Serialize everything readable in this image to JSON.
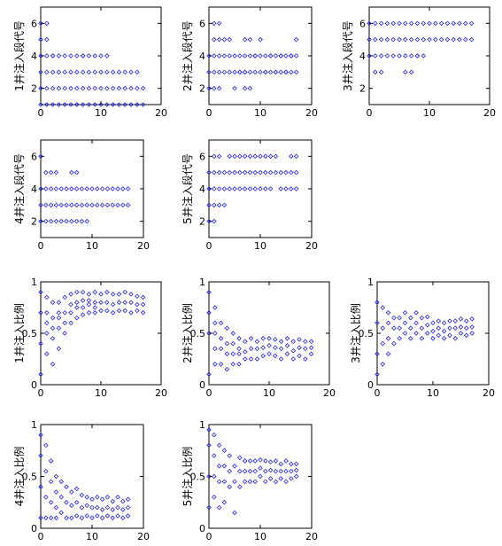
{
  "colors": {
    "marker": "#2222ee",
    "axis": "#000000",
    "background": "#ffffff"
  },
  "chart_data": [
    {
      "id": "p1",
      "type": "scatter",
      "ylabel": "1井注入段代号",
      "xlim": [
        0,
        20
      ],
      "ylim": [
        1,
        7
      ],
      "xticks": [
        0,
        10,
        20
      ],
      "yticks": [
        2,
        4,
        6
      ],
      "x": [
        0,
        0,
        0,
        0,
        0,
        0,
        1,
        1,
        1,
        1,
        1,
        1,
        2,
        2,
        2,
        2,
        2,
        3,
        3,
        3,
        3,
        4,
        4,
        4,
        4,
        5,
        5,
        5,
        5,
        6,
        6,
        6,
        6,
        7,
        7,
        7,
        7,
        7,
        8,
        8,
        8,
        8,
        9,
        9,
        9,
        9,
        10,
        10,
        10,
        10,
        11,
        11,
        11,
        11,
        12,
        12,
        12,
        13,
        13,
        13,
        14,
        14,
        14,
        15,
        15,
        15,
        16,
        16,
        16,
        17,
        17
      ],
      "y": [
        1,
        2,
        3,
        4,
        5,
        6,
        1,
        2,
        3,
        4,
        5,
        6,
        1,
        2,
        3,
        4,
        4,
        1,
        2,
        3,
        4,
        1,
        2,
        3,
        4,
        1,
        2,
        3,
        4,
        1,
        2,
        3,
        4,
        1,
        2,
        3,
        4,
        4,
        1,
        2,
        3,
        4,
        1,
        2,
        3,
        4,
        1,
        2,
        3,
        4,
        1,
        2,
        3,
        4,
        1,
        2,
        3,
        1,
        2,
        3,
        1,
        2,
        3,
        1,
        2,
        3,
        1,
        2,
        3,
        1,
        2
      ]
    },
    {
      "id": "p2",
      "type": "scatter",
      "ylabel": "2井注入段代号",
      "xlim": [
        0,
        20
      ],
      "ylim": [
        1,
        7
      ],
      "xticks": [
        0,
        10,
        20
      ],
      "yticks": [
        2,
        4,
        6
      ],
      "x": [
        0,
        0,
        0,
        1,
        1,
        1,
        1,
        1,
        2,
        2,
        2,
        2,
        2,
        3,
        3,
        3,
        4,
        4,
        4,
        5,
        5,
        5,
        6,
        6,
        6,
        7,
        7,
        7,
        7,
        7,
        8,
        8,
        8,
        8,
        9,
        9,
        9,
        10,
        10,
        10,
        11,
        11,
        11,
        12,
        12,
        12,
        13,
        13,
        13,
        14,
        14,
        14,
        15,
        15,
        15,
        16,
        16,
        16,
        17,
        17,
        17
      ],
      "y": [
        2,
        3,
        4,
        2,
        3,
        4,
        5,
        6,
        2,
        3,
        4,
        5,
        6,
        3,
        4,
        5,
        3,
        4,
        5,
        3,
        4,
        2,
        3,
        4,
        3,
        2,
        3,
        4,
        5,
        3,
        4,
        5,
        2,
        3,
        4,
        3,
        4,
        3,
        4,
        5,
        3,
        4,
        3,
        4,
        3,
        4,
        3,
        4,
        3,
        4,
        3,
        4,
        3,
        4,
        3,
        4,
        3,
        4,
        3,
        4,
        5
      ]
    },
    {
      "id": "p3",
      "type": "scatter",
      "ylabel": "3井注入段代号",
      "xlim": [
        0,
        20
      ],
      "ylim": [
        1,
        7
      ],
      "xticks": [
        0,
        10,
        20
      ],
      "yticks": [
        2,
        4,
        6
      ],
      "x": [
        0,
        0,
        0,
        1,
        1,
        1,
        1,
        2,
        2,
        2,
        2,
        3,
        3,
        3,
        4,
        4,
        4,
        5,
        5,
        5,
        6,
        6,
        6,
        6,
        7,
        7,
        7,
        7,
        8,
        8,
        8,
        8,
        9,
        9,
        9,
        10,
        10,
        11,
        11,
        12,
        12,
        13,
        13,
        14,
        14,
        15,
        15,
        16,
        16,
        17,
        17
      ],
      "y": [
        4,
        5,
        6,
        3,
        4,
        5,
        6,
        3,
        4,
        5,
        6,
        4,
        5,
        6,
        4,
        5,
        6,
        4,
        5,
        6,
        3,
        4,
        5,
        6,
        3,
        4,
        5,
        6,
        4,
        5,
        6,
        4,
        5,
        6,
        4,
        5,
        6,
        5,
        6,
        5,
        6,
        5,
        6,
        5,
        6,
        5,
        6,
        5,
        6,
        5,
        6
      ]
    },
    {
      "id": "p4",
      "type": "scatter",
      "ylabel": "4井注入段代号",
      "xlim": [
        0,
        20
      ],
      "ylim": [
        1,
        7
      ],
      "xticks": [
        0,
        10,
        20
      ],
      "yticks": [
        2,
        4,
        6
      ],
      "x": [
        0,
        0,
        0,
        0,
        1,
        1,
        1,
        1,
        2,
        2,
        2,
        2,
        3,
        3,
        3,
        3,
        4,
        4,
        4,
        5,
        5,
        5,
        6,
        6,
        6,
        6,
        7,
        7,
        7,
        7,
        8,
        8,
        8,
        9,
        9,
        9,
        10,
        10,
        11,
        11,
        12,
        12,
        13,
        13,
        14,
        14,
        15,
        15,
        16,
        16,
        17,
        17
      ],
      "y": [
        2,
        3,
        4,
        6,
        2,
        3,
        4,
        5,
        2,
        3,
        4,
        5,
        2,
        3,
        4,
        5,
        2,
        3,
        4,
        2,
        3,
        4,
        2,
        3,
        4,
        5,
        2,
        3,
        4,
        5,
        2,
        3,
        4,
        2,
        3,
        4,
        3,
        4,
        3,
        4,
        3,
        4,
        3,
        4,
        3,
        4,
        3,
        4,
        3,
        4,
        3,
        4
      ]
    },
    {
      "id": "p5",
      "type": "scatter",
      "ylabel": "5井注入段代号",
      "xlim": [
        0,
        20
      ],
      "ylim": [
        1,
        7
      ],
      "xticks": [
        0,
        10,
        20
      ],
      "yticks": [
        2,
        4,
        6
      ],
      "x": [
        0,
        0,
        0,
        0,
        1,
        1,
        1,
        1,
        1,
        2,
        2,
        2,
        2,
        3,
        3,
        3,
        4,
        4,
        4,
        5,
        5,
        5,
        6,
        6,
        6,
        7,
        7,
        7,
        8,
        8,
        8,
        9,
        9,
        9,
        10,
        10,
        10,
        11,
        11,
        11,
        12,
        12,
        12,
        13,
        13,
        14,
        14,
        15,
        15,
        16,
        16,
        16,
        17,
        17,
        17
      ],
      "y": [
        2,
        3,
        4,
        5,
        2,
        3,
        4,
        5,
        6,
        3,
        4,
        5,
        6,
        3,
        4,
        5,
        4,
        5,
        6,
        4,
        5,
        6,
        4,
        5,
        6,
        4,
        5,
        6,
        4,
        5,
        6,
        4,
        5,
        6,
        4,
        5,
        6,
        4,
        5,
        6,
        4,
        5,
        6,
        5,
        6,
        4,
        5,
        4,
        5,
        4,
        5,
        6,
        4,
        5,
        6
      ]
    },
    {
      "id": "r1",
      "type": "scatter",
      "ylabel": "1井注入比例",
      "xlim": [
        0,
        20
      ],
      "ylim": [
        0,
        1
      ],
      "xticks": [
        0,
        10,
        20
      ],
      "yticks": [
        0,
        0.5,
        1
      ],
      "ytick_labels": [
        "0",
        "0.5",
        "1"
      ],
      "x": [
        0,
        0,
        0,
        0,
        1,
        1,
        1,
        1,
        1,
        2,
        2,
        2,
        2,
        2,
        3,
        3,
        3,
        3,
        3,
        4,
        4,
        4,
        4,
        5,
        5,
        5,
        5,
        6,
        6,
        6,
        6,
        7,
        7,
        7,
        7,
        8,
        8,
        8,
        8,
        9,
        9,
        9,
        9,
        10,
        10,
        10,
        11,
        11,
        11,
        12,
        12,
        12,
        13,
        13,
        13,
        14,
        14,
        14,
        15,
        15,
        15,
        16,
        16,
        16,
        17,
        17,
        17
      ],
      "y": [
        0.1,
        0.4,
        0.7,
        0.9,
        0.3,
        0.5,
        0.6,
        0.7,
        0.85,
        0.2,
        0.45,
        0.55,
        0.65,
        0.8,
        0.35,
        0.55,
        0.65,
        0.7,
        0.8,
        0.5,
        0.6,
        0.7,
        0.85,
        0.6,
        0.7,
        0.78,
        0.88,
        0.65,
        0.75,
        0.8,
        0.9,
        0.68,
        0.75,
        0.82,
        0.9,
        0.7,
        0.78,
        0.82,
        0.88,
        0.7,
        0.75,
        0.8,
        0.9,
        0.72,
        0.8,
        0.88,
        0.72,
        0.8,
        0.9,
        0.7,
        0.78,
        0.88,
        0.72,
        0.8,
        0.88,
        0.72,
        0.8,
        0.9,
        0.7,
        0.8,
        0.88,
        0.72,
        0.78,
        0.86,
        0.7,
        0.78,
        0.85
      ]
    },
    {
      "id": "r2",
      "type": "scatter",
      "ylabel": "2井注入比例",
      "xlim": [
        0,
        20
      ],
      "ylim": [
        0,
        1
      ],
      "xticks": [
        0,
        10,
        20
      ],
      "yticks": [
        0,
        0.5,
        1
      ],
      "ytick_labels": [
        "0",
        "0.5",
        "1"
      ],
      "x": [
        0,
        0,
        0,
        0,
        1,
        1,
        1,
        1,
        1,
        2,
        2,
        2,
        2,
        3,
        3,
        3,
        3,
        4,
        4,
        4,
        4,
        5,
        5,
        5,
        5,
        6,
        6,
        6,
        7,
        7,
        7,
        8,
        8,
        8,
        9,
        9,
        9,
        10,
        10,
        10,
        11,
        11,
        11,
        12,
        12,
        12,
        13,
        13,
        13,
        14,
        14,
        14,
        15,
        15,
        15,
        16,
        16,
        16,
        17,
        17,
        17
      ],
      "y": [
        0.1,
        0.5,
        0.7,
        0.9,
        0.2,
        0.35,
        0.5,
        0.6,
        0.75,
        0.2,
        0.35,
        0.45,
        0.6,
        0.15,
        0.3,
        0.4,
        0.55,
        0.2,
        0.3,
        0.4,
        0.5,
        0.2,
        0.3,
        0.35,
        0.45,
        0.25,
        0.32,
        0.42,
        0.25,
        0.35,
        0.45,
        0.25,
        0.35,
        0.42,
        0.28,
        0.36,
        0.45,
        0.3,
        0.38,
        0.45,
        0.28,
        0.36,
        0.44,
        0.25,
        0.35,
        0.42,
        0.3,
        0.38,
        0.45,
        0.25,
        0.33,
        0.42,
        0.28,
        0.36,
        0.44,
        0.25,
        0.35,
        0.42,
        0.3,
        0.36,
        0.42
      ]
    },
    {
      "id": "r3",
      "type": "scatter",
      "ylabel": "3井注入比例",
      "xlim": [
        0,
        20
      ],
      "ylim": [
        0,
        1
      ],
      "xticks": [
        0,
        10,
        20
      ],
      "yticks": [
        0,
        0.5,
        1
      ],
      "ytick_labels": [
        "0",
        "0.5",
        "1"
      ],
      "x": [
        0,
        0,
        0,
        0,
        1,
        1,
        1,
        1,
        2,
        2,
        2,
        2,
        3,
        3,
        3,
        4,
        4,
        4,
        5,
        5,
        5,
        6,
        6,
        6,
        7,
        7,
        7,
        8,
        8,
        8,
        9,
        9,
        9,
        10,
        10,
        10,
        11,
        11,
        11,
        12,
        12,
        12,
        13,
        13,
        13,
        14,
        14,
        14,
        15,
        15,
        15,
        16,
        16,
        16,
        17,
        17,
        17
      ],
      "y": [
        0.1,
        0.3,
        0.6,
        0.8,
        0.2,
        0.4,
        0.55,
        0.75,
        0.3,
        0.45,
        0.6,
        0.7,
        0.4,
        0.55,
        0.65,
        0.45,
        0.55,
        0.65,
        0.5,
        0.6,
        0.7,
        0.45,
        0.55,
        0.65,
        0.5,
        0.6,
        0.7,
        0.45,
        0.55,
        0.65,
        0.5,
        0.58,
        0.66,
        0.45,
        0.52,
        0.6,
        0.48,
        0.55,
        0.62,
        0.45,
        0.52,
        0.6,
        0.48,
        0.55,
        0.62,
        0.45,
        0.55,
        0.62,
        0.5,
        0.56,
        0.64,
        0.48,
        0.55,
        0.62,
        0.5,
        0.56,
        0.64
      ]
    },
    {
      "id": "r4",
      "type": "scatter",
      "ylabel": "4井注入比例",
      "xlim": [
        0,
        20
      ],
      "ylim": [
        0,
        1
      ],
      "xticks": [
        0,
        10,
        20
      ],
      "yticks": [
        0,
        0.5,
        1
      ],
      "ytick_labels": [
        "0",
        "0.5",
        "1"
      ],
      "x": [
        0,
        0,
        0,
        0,
        1,
        1,
        1,
        1,
        2,
        2,
        2,
        2,
        3,
        3,
        3,
        3,
        4,
        4,
        4,
        5,
        5,
        5,
        6,
        6,
        6,
        7,
        7,
        7,
        8,
        8,
        8,
        9,
        9,
        9,
        10,
        10,
        10,
        11,
        11,
        11,
        12,
        12,
        12,
        13,
        13,
        13,
        14,
        14,
        14,
        15,
        15,
        15,
        16,
        16,
        16,
        17,
        17,
        17
      ],
      "y": [
        0.1,
        0.4,
        0.7,
        0.9,
        0.1,
        0.3,
        0.55,
        0.8,
        0.1,
        0.25,
        0.45,
        0.65,
        0.1,
        0.2,
        0.35,
        0.5,
        0.15,
        0.3,
        0.45,
        0.1,
        0.25,
        0.4,
        0.1,
        0.22,
        0.35,
        0.12,
        0.25,
        0.38,
        0.1,
        0.2,
        0.32,
        0.12,
        0.22,
        0.3,
        0.1,
        0.2,
        0.28,
        0.12,
        0.2,
        0.3,
        0.1,
        0.18,
        0.28,
        0.12,
        0.2,
        0.3,
        0.1,
        0.18,
        0.26,
        0.12,
        0.2,
        0.3,
        0.1,
        0.18,
        0.26,
        0.12,
        0.2,
        0.28
      ]
    },
    {
      "id": "r5",
      "type": "scatter",
      "ylabel": "5井注入比例",
      "xlim": [
        0,
        20
      ],
      "ylim": [
        0,
        1
      ],
      "xticks": [
        0,
        10,
        20
      ],
      "yticks": [
        0,
        0.5,
        1
      ],
      "ytick_labels": [
        "0",
        "0.5",
        "1"
      ],
      "x": [
        0,
        0,
        0,
        0,
        1,
        1,
        1,
        1,
        2,
        2,
        2,
        2,
        3,
        3,
        3,
        3,
        4,
        4,
        4,
        5,
        5,
        5,
        6,
        6,
        6,
        7,
        7,
        7,
        8,
        8,
        8,
        9,
        9,
        9,
        10,
        10,
        10,
        11,
        11,
        11,
        12,
        12,
        12,
        13,
        13,
        13,
        14,
        14,
        14,
        15,
        15,
        15,
        16,
        16,
        16,
        17,
        17,
        17
      ],
      "y": [
        0.2,
        0.5,
        0.8,
        0.95,
        0.3,
        0.5,
        0.7,
        0.9,
        0.2,
        0.45,
        0.6,
        0.8,
        0.25,
        0.45,
        0.6,
        0.75,
        0.4,
        0.55,
        0.7,
        0.15,
        0.45,
        0.6,
        0.4,
        0.55,
        0.68,
        0.45,
        0.55,
        0.65,
        0.45,
        0.55,
        0.65,
        0.45,
        0.55,
        0.65,
        0.5,
        0.58,
        0.66,
        0.45,
        0.55,
        0.65,
        0.48,
        0.56,
        0.64,
        0.45,
        0.55,
        0.65,
        0.48,
        0.55,
        0.62,
        0.45,
        0.55,
        0.65,
        0.48,
        0.55,
        0.62,
        0.5,
        0.56,
        0.62
      ]
    }
  ]
}
